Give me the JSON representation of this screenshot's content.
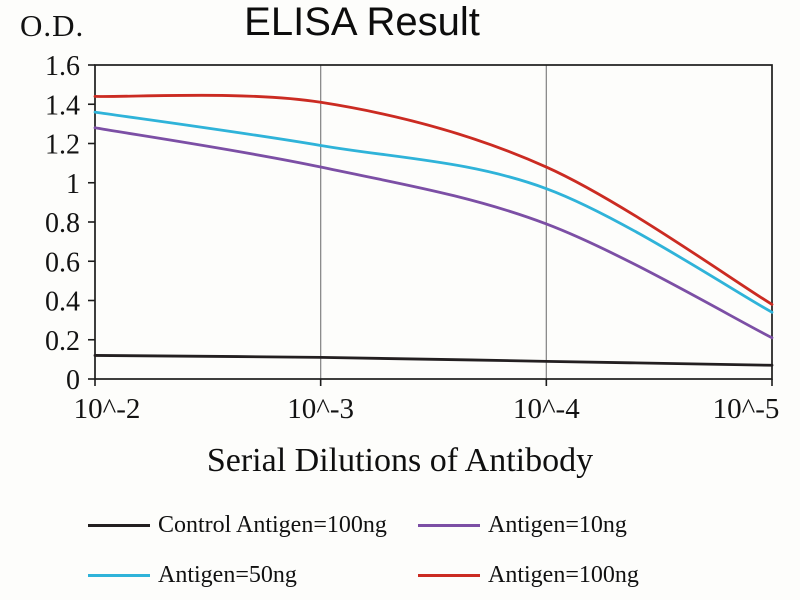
{
  "figure": {
    "title": "ELISA Result",
    "y_axis_label": "O.D.",
    "x_axis_label": "Serial Dilutions of Antibody"
  },
  "chart_data": {
    "type": "line",
    "title": "ELISA Result",
    "ylabel": "O.D.",
    "xlabel": "Serial Dilutions of Antibody",
    "categories": [
      "10^-2",
      "10^-3",
      "10^-4",
      "10^-5"
    ],
    "ylim": [
      0,
      1.6
    ],
    "yticks": [
      0,
      0.2,
      0.4,
      0.6,
      0.8,
      1,
      1.2,
      1.4,
      1.6
    ],
    "ytick_labels": [
      "0",
      "0.2",
      "0.4",
      "0.6",
      "0.8",
      "1",
      "1.2",
      "1.4",
      "1.6"
    ],
    "grid": "vertical-only",
    "legend_position": "bottom",
    "axis_color": "#1c1c1c",
    "gridline_color": "#8a8a8a",
    "series": [
      {
        "name": "Control Antigen=100ng",
        "color": "#231f20",
        "values": [
          0.12,
          0.11,
          0.09,
          0.07
        ]
      },
      {
        "name": "Antigen=10ng",
        "color": "#7c4fa5",
        "values": [
          1.28,
          1.08,
          0.79,
          0.21
        ]
      },
      {
        "name": "Antigen=50ng",
        "color": "#2fb3d9",
        "values": [
          1.36,
          1.19,
          0.97,
          0.34
        ]
      },
      {
        "name": "Antigen=100ng",
        "color": "#cb2b22",
        "values": [
          1.44,
          1.41,
          1.08,
          0.38
        ]
      }
    ]
  }
}
